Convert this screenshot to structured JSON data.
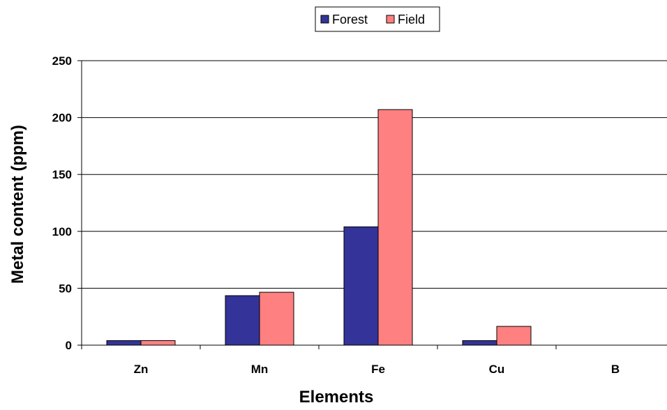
{
  "chart_data": {
    "type": "bar",
    "title": "",
    "xlabel": "Elements",
    "ylabel": "Metal content (ppm)",
    "categories": [
      "Zn",
      "Mn",
      "Fe",
      "Cu",
      "B"
    ],
    "series": [
      {
        "name": "Forest",
        "color": "#333399",
        "values": [
          4,
          43.5,
          104,
          4,
          0
        ]
      },
      {
        "name": "Field",
        "color": "#ff8080",
        "values": [
          4,
          46.5,
          207,
          16.5,
          0
        ]
      }
    ],
    "ylim": [
      0,
      250
    ],
    "yticks": [
      0,
      50,
      100,
      150,
      200,
      250
    ],
    "grid": true,
    "legend_position": "top-center"
  }
}
